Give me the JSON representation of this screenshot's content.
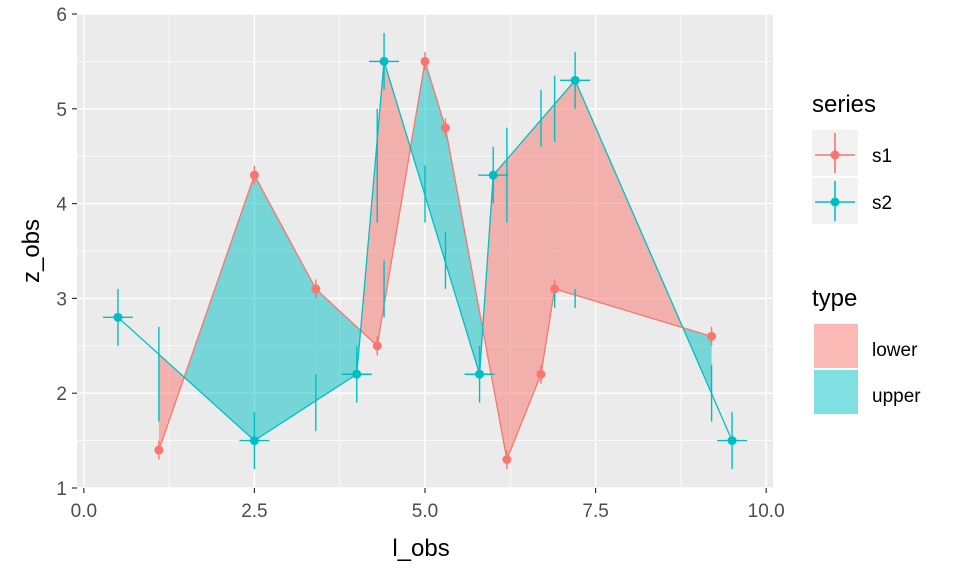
{
  "chart_data": {
    "type": "line",
    "xlabel": "l_obs",
    "ylabel": "z_obs",
    "xlim": [
      -0.1,
      10.1
    ],
    "ylim": [
      1,
      6
    ],
    "x_ticks": [
      "0.0",
      "2.5",
      "5.0",
      "7.5",
      "10.0"
    ],
    "y_ticks": [
      "1",
      "2",
      "3",
      "4",
      "5",
      "6"
    ],
    "grid": true,
    "legend_placement": "right",
    "series_legend_title": "series",
    "fill_legend_title": "type",
    "series": [
      {
        "name": "s1",
        "color": "#F8766D",
        "x": [
          1.1,
          2.5,
          3.4,
          4.3,
          5.0,
          5.3,
          6.2,
          6.7,
          6.9,
          9.2
        ],
        "y": [
          1.4,
          4.3,
          3.1,
          2.5,
          5.5,
          4.8,
          1.3,
          2.2,
          3.1,
          2.6
        ],
        "yerr": [
          0.1,
          0.1,
          0.1,
          0.1,
          0.1,
          0.1,
          0.1,
          0.1,
          0.1,
          0.1
        ]
      },
      {
        "name": "s2",
        "color": "#00BFC4",
        "x": [
          0.5,
          2.5,
          4.0,
          4.4,
          5.8,
          6.0,
          7.2,
          9.5
        ],
        "y": [
          2.8,
          1.5,
          2.2,
          5.5,
          2.2,
          4.3,
          5.3,
          1.5
        ],
        "yerr": [
          0.3,
          0.3,
          0.3,
          0.3,
          0.3,
          0.3,
          0.3,
          0.3
        ]
      }
    ],
    "fill_types": [
      {
        "name": "lower",
        "color": "#F8766D",
        "alpha": 0.5
      },
      {
        "name": "upper",
        "color": "#00BFC4",
        "alpha": 0.5
      }
    ],
    "extra_errorbars": [
      {
        "x": 1.1,
        "y": 2.2,
        "yerr": 0.5
      },
      {
        "x": 3.4,
        "y": 1.9,
        "yerr": 0.3
      },
      {
        "x": 4.3,
        "y": 4.4,
        "yerr": 0.6
      },
      {
        "x": 4.4,
        "y": 3.1,
        "yerr": 0.3
      },
      {
        "x": 5.0,
        "y": 4.1,
        "yerr": 0.3
      },
      {
        "x": 5.3,
        "y": 3.4,
        "yerr": 0.3
      },
      {
        "x": 6.2,
        "y": 4.3,
        "yerr": 0.5
      },
      {
        "x": 6.7,
        "y": 4.9,
        "yerr": 0.3
      },
      {
        "x": 6.9,
        "y": 3.0,
        "yerr": 0.1
      },
      {
        "x": 6.9,
        "y": 5.0,
        "yerr": 0.35
      },
      {
        "x": 7.2,
        "y": 3.0,
        "yerr": 0.1
      },
      {
        "x": 9.2,
        "y": 2.0,
        "yerr": 0.3
      }
    ]
  }
}
